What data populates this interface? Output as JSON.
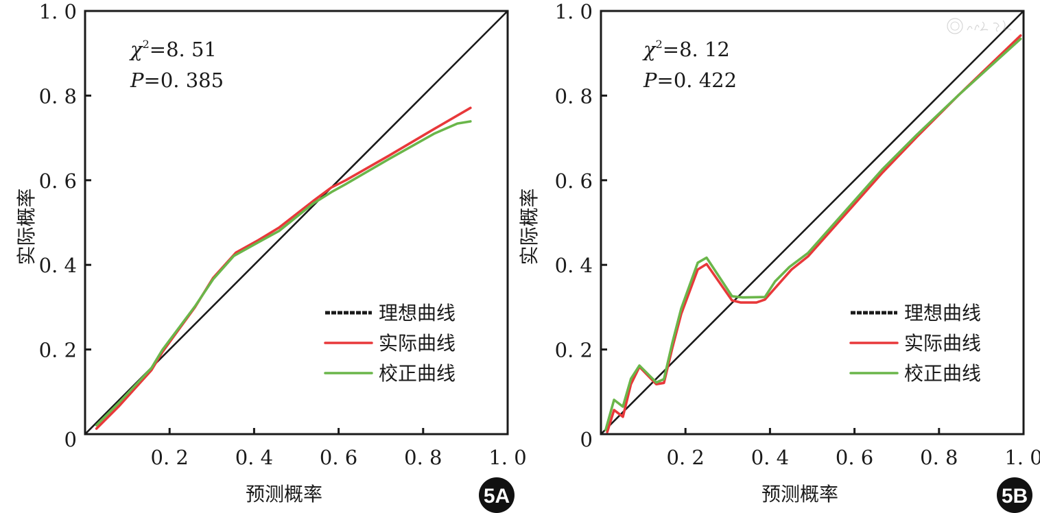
{
  "colors": {
    "ideal": "#1a1a1a",
    "actual": "#e8383a",
    "calibrated": "#6ab64a",
    "frame": "#1a1a1a",
    "badge": "#111111"
  },
  "watermark": {
    "icon": "society-seal-icon"
  },
  "chart_data": [
    {
      "type": "line",
      "panel": "5A",
      "badge": "5A",
      "xlabel": "预测概率",
      "ylabel": "实际概率",
      "xlim": [
        0,
        1.0
      ],
      "ylim": [
        0,
        1.0
      ],
      "x_ticks": [
        0.2,
        0.4,
        0.6,
        0.8,
        1.0
      ],
      "x_tick_labels": [
        "0. 2",
        "0. 4",
        "0. 6",
        "0. 8",
        "1. 0"
      ],
      "y_ticks": [
        0,
        0.2,
        0.4,
        0.6,
        0.8,
        1.0
      ],
      "y_tick_labels": [
        "0",
        "0. 2",
        "0. 4",
        "0. 6",
        "0. 8",
        "1. 0"
      ],
      "grid": false,
      "stats": {
        "chi_symbol": "χ",
        "chi_sup": "2",
        "chi_value": "=8. 51",
        "p_symbol": "P",
        "p_value": "=0. 385"
      },
      "legend_position": "bottom-right",
      "series": [
        {
          "name": "理想曲线",
          "key": "ideal",
          "style": "dotted-legend",
          "x": [
            0,
            1.0
          ],
          "y": [
            0,
            1.0
          ]
        },
        {
          "name": "实际曲线",
          "key": "actual",
          "x": [
            0.027,
            0.081,
            0.157,
            0.183,
            0.26,
            0.303,
            0.357,
            0.411,
            0.459,
            0.54,
            0.583,
            0.617,
            0.719,
            0.826,
            0.912
          ],
          "y": [
            0.013,
            0.067,
            0.151,
            0.194,
            0.3,
            0.369,
            0.429,
            0.459,
            0.488,
            0.551,
            0.583,
            0.6,
            0.658,
            0.721,
            0.771
          ]
        },
        {
          "name": "校正曲线",
          "key": "calibrated",
          "x": [
            0.027,
            0.081,
            0.157,
            0.183,
            0.26,
            0.303,
            0.352,
            0.411,
            0.459,
            0.54,
            0.583,
            0.617,
            0.719,
            0.826,
            0.881,
            0.912
          ],
          "y": [
            0.021,
            0.075,
            0.156,
            0.199,
            0.302,
            0.366,
            0.421,
            0.454,
            0.48,
            0.545,
            0.572,
            0.591,
            0.65,
            0.71,
            0.734,
            0.739
          ]
        }
      ]
    },
    {
      "type": "line",
      "panel": "5B",
      "badge": "5B",
      "xlabel": "预测概率",
      "ylabel": "实际概率",
      "xlim": [
        0,
        1.0
      ],
      "ylim": [
        0,
        1.0
      ],
      "x_ticks": [
        0.2,
        0.4,
        0.6,
        0.8,
        1.0
      ],
      "x_tick_labels": [
        "0. 2",
        "0. 4",
        "0. 6",
        "0. 8",
        "1. 0"
      ],
      "y_ticks": [
        0,
        0.2,
        0.4,
        0.6,
        0.8,
        1.0
      ],
      "y_tick_labels": [
        "0",
        "0. 2",
        "0. 4",
        "0. 6",
        "0. 8",
        "1. 0"
      ],
      "grid": false,
      "stats": {
        "chi_symbol": "χ",
        "chi_sup": "2",
        "chi_value": "=8. 12",
        "p_symbol": "P",
        "p_value": "=0. 422"
      },
      "legend_position": "bottom-right",
      "series": [
        {
          "name": "理想曲线",
          "key": "ideal",
          "style": "dotted-legend",
          "x": [
            0,
            1.0
          ],
          "y": [
            0,
            1.0
          ]
        },
        {
          "name": "实际曲线",
          "key": "actual",
          "x": [
            0.015,
            0.031,
            0.052,
            0.071,
            0.091,
            0.131,
            0.149,
            0.169,
            0.19,
            0.229,
            0.25,
            0.31,
            0.331,
            0.368,
            0.388,
            0.451,
            0.49,
            0.666,
            0.748,
            0.847,
            0.993
          ],
          "y": [
            0.005,
            0.057,
            0.041,
            0.118,
            0.159,
            0.118,
            0.121,
            0.204,
            0.284,
            0.389,
            0.402,
            0.316,
            0.311,
            0.311,
            0.318,
            0.389,
            0.42,
            0.618,
            0.703,
            0.802,
            0.942
          ]
        },
        {
          "name": "校正曲线",
          "key": "calibrated",
          "x": [
            0.011,
            0.031,
            0.052,
            0.071,
            0.091,
            0.131,
            0.149,
            0.169,
            0.19,
            0.229,
            0.25,
            0.31,
            0.336,
            0.388,
            0.412,
            0.446,
            0.49,
            0.666,
            0.748,
            0.847,
            0.993
          ],
          "y": [
            0.01,
            0.081,
            0.065,
            0.131,
            0.162,
            0.122,
            0.13,
            0.216,
            0.297,
            0.405,
            0.417,
            0.326,
            0.323,
            0.324,
            0.361,
            0.395,
            0.428,
            0.626,
            0.708,
            0.802,
            0.934
          ]
        }
      ]
    }
  ]
}
